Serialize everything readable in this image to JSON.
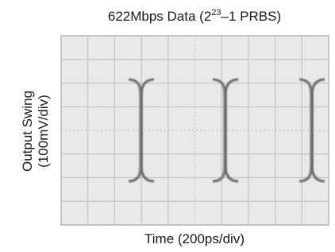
{
  "chart_data": {
    "type": "eye-diagram",
    "title": {
      "text": "622Mbps Data (2",
      "superscript": "23",
      "tail": "–1 PRBS)"
    },
    "y_label": [
      "Output Swing",
      "(100mV/div)"
    ],
    "x_label": "Time (200ps/div)"
  }
}
